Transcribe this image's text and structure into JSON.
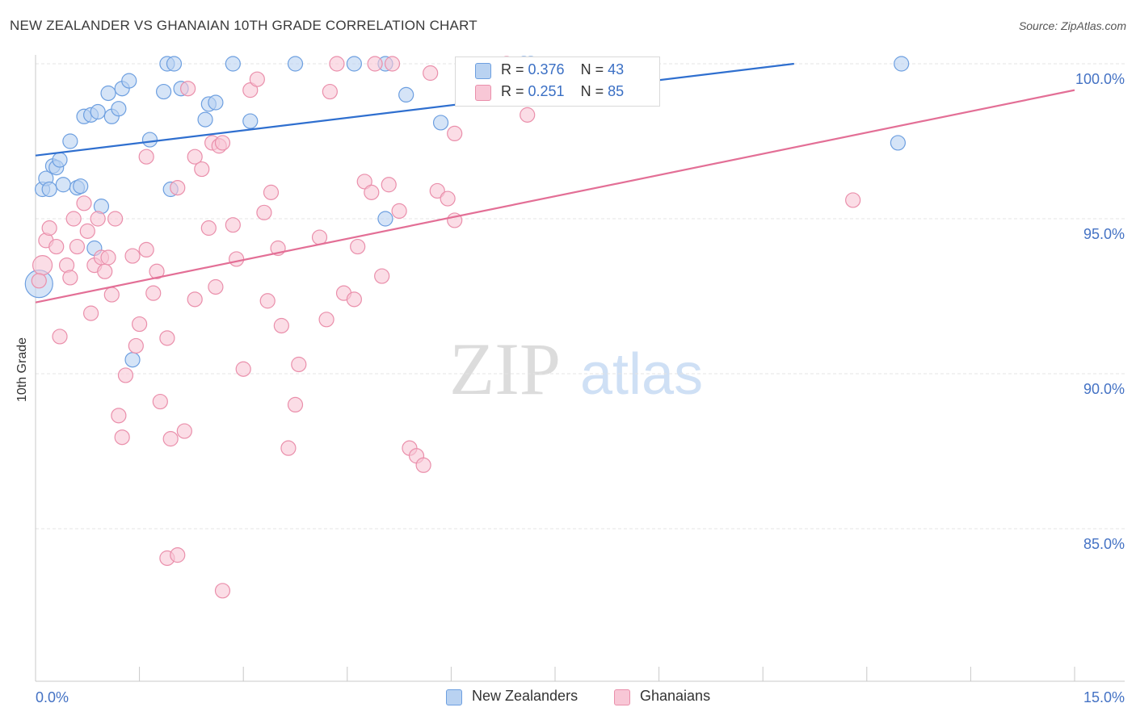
{
  "title": "NEW ZEALANDER VS GHANAIAN 10TH GRADE CORRELATION CHART",
  "source": "Source: ZipAtlas.com",
  "watermark": {
    "zip": "ZIP",
    "atlas": "atlas"
  },
  "legend": {
    "rows": [
      {
        "r_label": "R = ",
        "r_value": "0.376",
        "n_label": "N = ",
        "n_value": "43"
      },
      {
        "r_label": "R = ",
        "r_value": "0.251",
        "n_label": "N = ",
        "n_value": "85"
      }
    ]
  },
  "colors": {
    "blue_fill": "#b9d2f1",
    "blue_stroke": "#6d9fe0",
    "blue_line": "#2f6fcf",
    "pink_fill": "#f8c7d6",
    "pink_stroke": "#ea8fab",
    "pink_line": "#e36f96",
    "tick_label": "#4472c4",
    "grid": "#e4e4e4"
  },
  "chart_data": {
    "type": "scatter",
    "title": "NEW ZEALANDER VS GHANAIAN 10TH GRADE CORRELATION CHART",
    "xlabel": "",
    "ylabel": "10th Grade",
    "xlim": [
      0,
      15
    ],
    "ylim": [
      80.5,
      100.75
    ],
    "x_tick_labels": [
      "0.0%",
      "15.0%"
    ],
    "y_ticks": [
      85,
      90,
      95,
      100
    ],
    "y_tick_labels": [
      "85.0%",
      "90.0%",
      "95.0%",
      "100.0%"
    ],
    "grid": true,
    "legend_position": "bottom-center",
    "series": [
      {
        "name": "New Zealanders",
        "color": "#6d9fe0",
        "trend": {
          "x": [
            0,
            10.95
          ],
          "y": [
            97.04,
            100.0
          ]
        },
        "points": [
          [
            0.05,
            92.9
          ],
          [
            0.1,
            95.95
          ],
          [
            0.15,
            96.3
          ],
          [
            0.2,
            95.95
          ],
          [
            0.25,
            96.7
          ],
          [
            0.3,
            96.65
          ],
          [
            0.35,
            96.9
          ],
          [
            0.4,
            96.1
          ],
          [
            0.5,
            97.5
          ],
          [
            0.6,
            96.0
          ],
          [
            0.65,
            96.05
          ],
          [
            0.7,
            98.3
          ],
          [
            0.8,
            98.35
          ],
          [
            0.85,
            94.05
          ],
          [
            0.9,
            98.45
          ],
          [
            0.95,
            95.4
          ],
          [
            1.05,
            99.05
          ],
          [
            1.1,
            98.3
          ],
          [
            1.2,
            98.55
          ],
          [
            1.25,
            99.2
          ],
          [
            1.35,
            99.45
          ],
          [
            1.4,
            90.45
          ],
          [
            1.65,
            97.55
          ],
          [
            1.85,
            99.1
          ],
          [
            1.9,
            100.0
          ],
          [
            1.95,
            95.95
          ],
          [
            2.0,
            100.0
          ],
          [
            2.1,
            99.2
          ],
          [
            2.45,
            98.2
          ],
          [
            2.5,
            98.7
          ],
          [
            2.6,
            98.75
          ],
          [
            2.85,
            100.0
          ],
          [
            3.1,
            98.15
          ],
          [
            3.75,
            100.0
          ],
          [
            4.6,
            100.0
          ],
          [
            5.05,
            95.0
          ],
          [
            5.05,
            100.0
          ],
          [
            5.35,
            99.0
          ],
          [
            5.85,
            98.1
          ],
          [
            7.05,
            100.0
          ],
          [
            12.5,
            100.0
          ],
          [
            12.45,
            97.45
          ],
          [
            7.15,
            100.0
          ]
        ]
      },
      {
        "name": "Ghanaians",
        "color": "#ea8fab",
        "trend": {
          "x": [
            0,
            15
          ],
          "y": [
            92.3,
            99.15
          ]
        },
        "points": [
          [
            0.1,
            93.5
          ],
          [
            0.15,
            94.3
          ],
          [
            0.2,
            94.7
          ],
          [
            0.3,
            94.1
          ],
          [
            0.35,
            91.2
          ],
          [
            0.45,
            93.5
          ],
          [
            0.5,
            93.1
          ],
          [
            0.55,
            95.0
          ],
          [
            0.6,
            94.1
          ],
          [
            0.7,
            95.5
          ],
          [
            0.75,
            94.6
          ],
          [
            0.8,
            91.95
          ],
          [
            0.85,
            93.5
          ],
          [
            0.9,
            95.0
          ],
          [
            0.95,
            93.75
          ],
          [
            1.0,
            93.3
          ],
          [
            1.1,
            92.55
          ],
          [
            1.15,
            95.0
          ],
          [
            1.2,
            88.65
          ],
          [
            1.25,
            87.95
          ],
          [
            1.3,
            89.95
          ],
          [
            1.4,
            93.8
          ],
          [
            1.45,
            90.9
          ],
          [
            1.5,
            91.6
          ],
          [
            1.6,
            97.0
          ],
          [
            1.6,
            94.0
          ],
          [
            1.7,
            92.6
          ],
          [
            1.75,
            93.3
          ],
          [
            1.8,
            89.1
          ],
          [
            1.9,
            91.15
          ],
          [
            1.9,
            84.05
          ],
          [
            1.95,
            87.9
          ],
          [
            2.05,
            84.15
          ],
          [
            2.05,
            96.0
          ],
          [
            2.15,
            88.15
          ],
          [
            2.2,
            99.2
          ],
          [
            2.3,
            97.0
          ],
          [
            2.3,
            92.4
          ],
          [
            2.4,
            96.6
          ],
          [
            2.5,
            94.7
          ],
          [
            2.55,
            97.45
          ],
          [
            2.6,
            92.8
          ],
          [
            2.65,
            97.35
          ],
          [
            2.7,
            97.45
          ],
          [
            2.7,
            83.0
          ],
          [
            2.85,
            94.8
          ],
          [
            2.9,
            93.7
          ],
          [
            3.0,
            90.15
          ],
          [
            3.1,
            99.15
          ],
          [
            3.2,
            99.5
          ],
          [
            3.3,
            95.2
          ],
          [
            3.35,
            92.35
          ],
          [
            3.4,
            95.85
          ],
          [
            3.5,
            94.05
          ],
          [
            3.55,
            91.55
          ],
          [
            3.65,
            87.6
          ],
          [
            3.75,
            89.0
          ],
          [
            3.8,
            90.3
          ],
          [
            4.1,
            94.4
          ],
          [
            4.2,
            91.75
          ],
          [
            4.25,
            99.1
          ],
          [
            4.35,
            100.0
          ],
          [
            4.45,
            92.6
          ],
          [
            4.6,
            92.4
          ],
          [
            4.65,
            94.1
          ],
          [
            4.75,
            96.2
          ],
          [
            4.85,
            95.85
          ],
          [
            4.9,
            100.0
          ],
          [
            5.0,
            93.15
          ],
          [
            5.1,
            96.1
          ],
          [
            5.15,
            100.0
          ],
          [
            5.25,
            95.25
          ],
          [
            5.4,
            87.6
          ],
          [
            5.5,
            87.35
          ],
          [
            5.6,
            87.05
          ],
          [
            5.7,
            99.7
          ],
          [
            5.8,
            95.9
          ],
          [
            5.95,
            95.65
          ],
          [
            6.05,
            97.75
          ],
          [
            6.05,
            94.95
          ],
          [
            6.8,
            100.0
          ],
          [
            7.1,
            98.35
          ],
          [
            11.8,
            95.6
          ],
          [
            0.05,
            93.0
          ],
          [
            1.05,
            93.75
          ]
        ]
      }
    ]
  },
  "bottom_legend": [
    "New Zealanders",
    "Ghanaians"
  ]
}
